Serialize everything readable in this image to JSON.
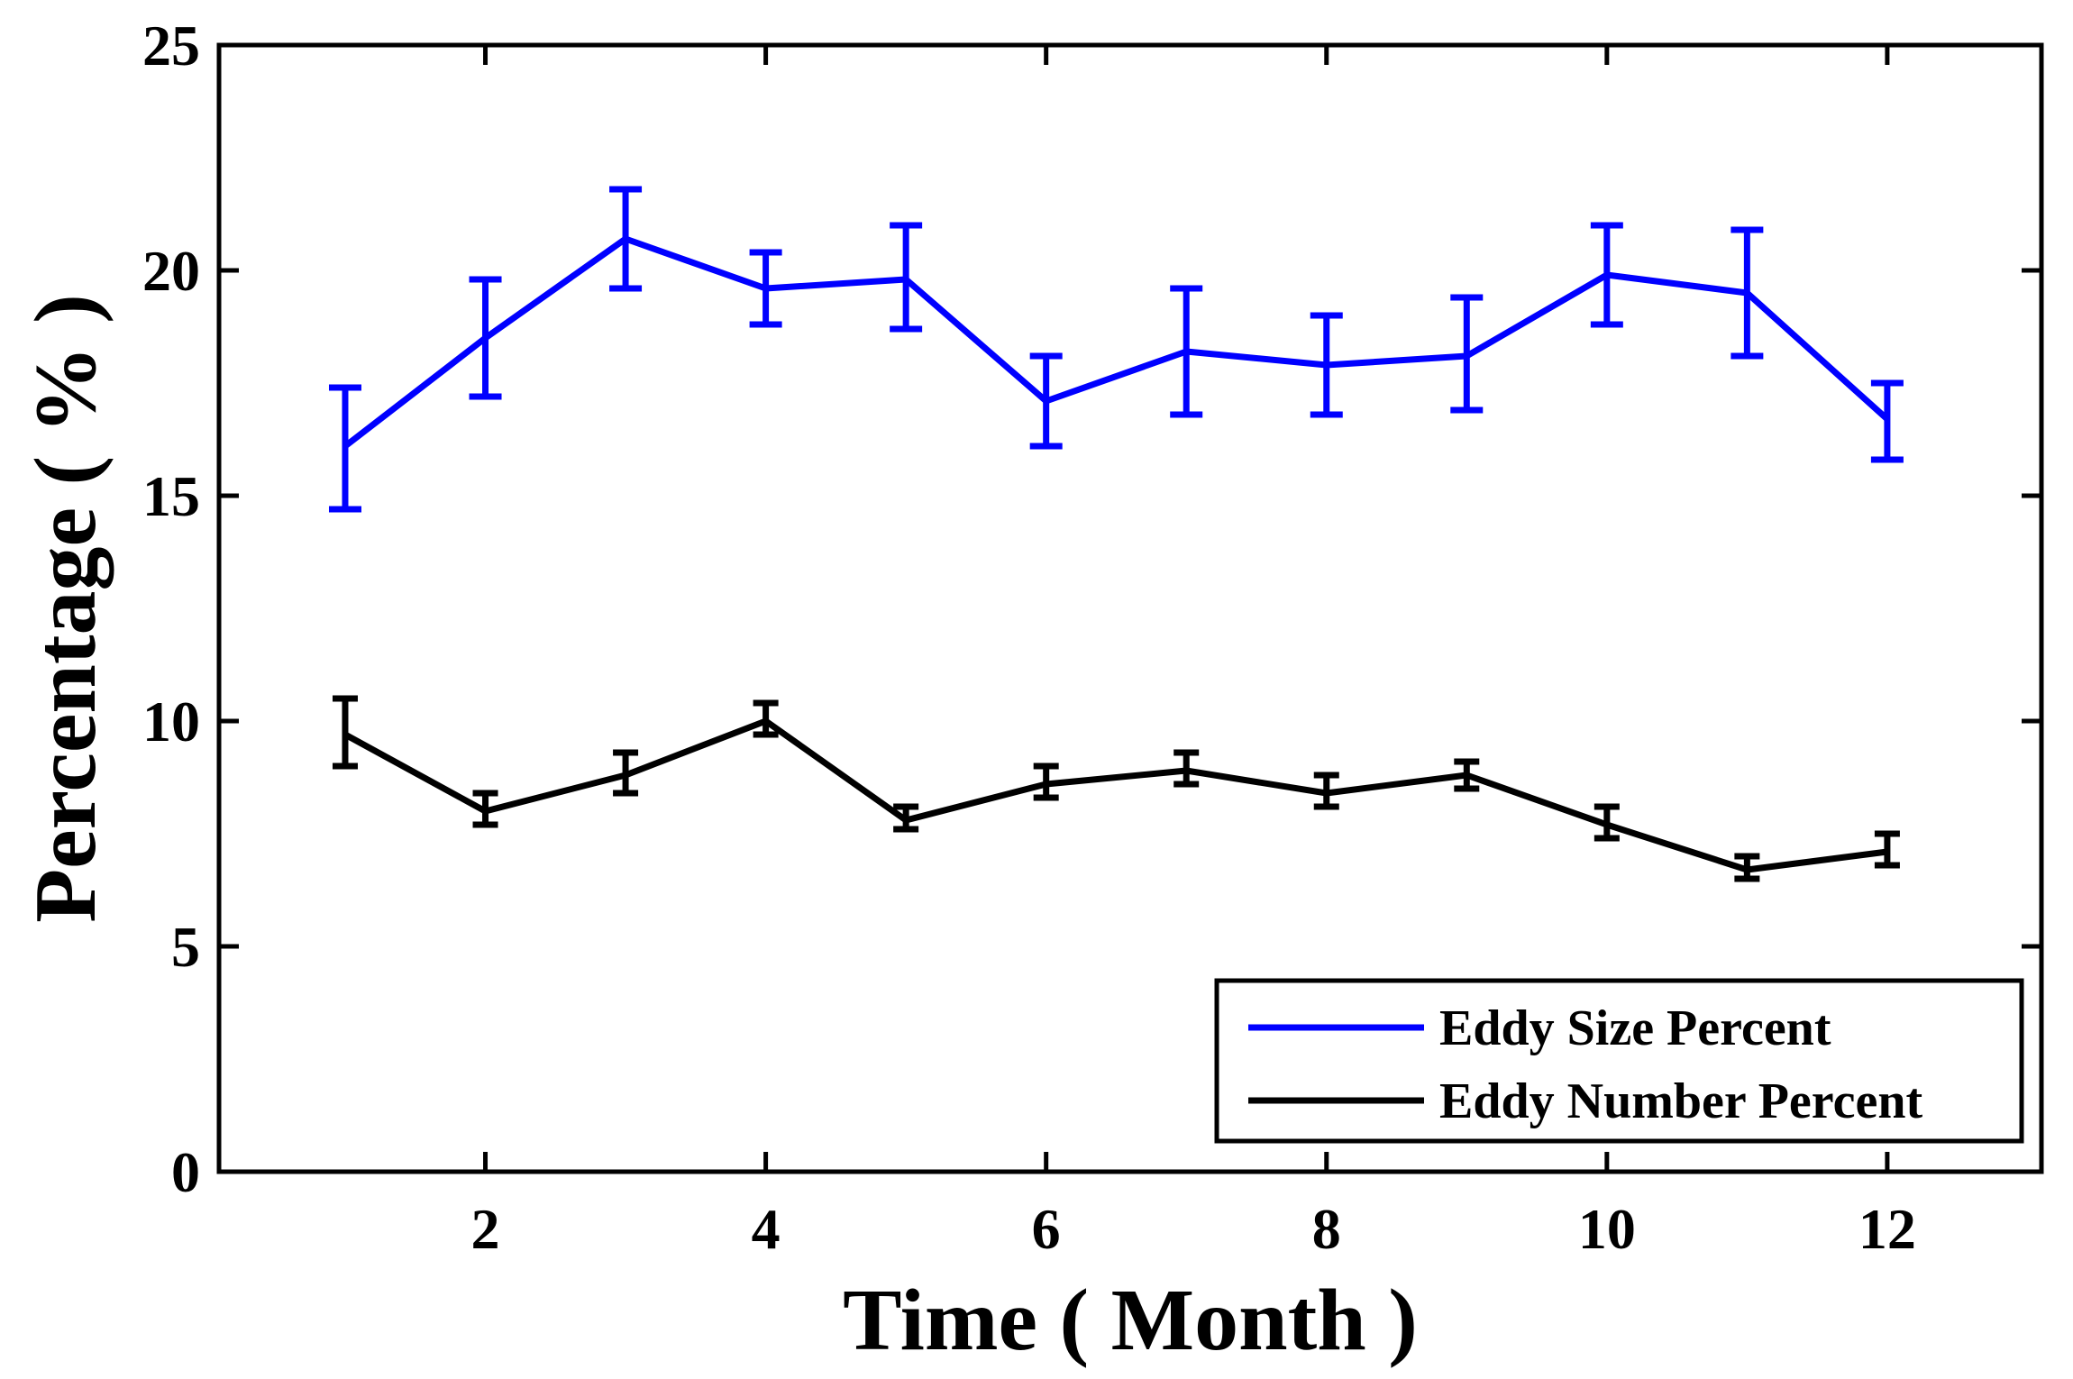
{
  "chart_data": {
    "type": "line",
    "title": "",
    "xlabel": "Time ( Month )",
    "ylabel": "Percentage ( % )",
    "xlim": [
      0.1,
      13.1
    ],
    "ylim": [
      0,
      25
    ],
    "xticks": [
      2,
      4,
      6,
      8,
      10,
      12
    ],
    "yticks": [
      0,
      5,
      10,
      15,
      20,
      25
    ],
    "grid": false,
    "legend_position": "bottom-right",
    "x": [
      1,
      2,
      3,
      4,
      5,
      6,
      7,
      8,
      9,
      10,
      11,
      12
    ],
    "series": [
      {
        "name": "Eddy Size Percent",
        "color": "#0000ff",
        "values": [
          16.1,
          18.5,
          20.7,
          19.6,
          19.8,
          17.1,
          18.2,
          17.9,
          18.1,
          19.9,
          19.5,
          16.7
        ],
        "error_low": [
          14.7,
          17.2,
          19.6,
          18.8,
          18.7,
          16.1,
          16.8,
          16.8,
          16.9,
          18.8,
          18.1,
          15.8
        ],
        "error_high": [
          17.4,
          19.8,
          21.8,
          20.4,
          21.0,
          18.1,
          19.6,
          19.0,
          19.4,
          21.0,
          20.9,
          17.5
        ]
      },
      {
        "name": "Eddy Number Percent",
        "color": "#000000",
        "values": [
          9.7,
          8.0,
          8.8,
          10.0,
          7.8,
          8.6,
          8.9,
          8.4,
          8.8,
          7.7,
          6.7,
          7.1
        ],
        "error_low": [
          9.0,
          7.7,
          8.4,
          9.7,
          7.6,
          8.3,
          8.6,
          8.1,
          8.5,
          7.4,
          6.5,
          6.8
        ],
        "error_high": [
          10.5,
          8.4,
          9.3,
          10.4,
          8.1,
          9.0,
          9.3,
          8.8,
          9.1,
          8.1,
          7.0,
          7.5
        ]
      }
    ]
  }
}
